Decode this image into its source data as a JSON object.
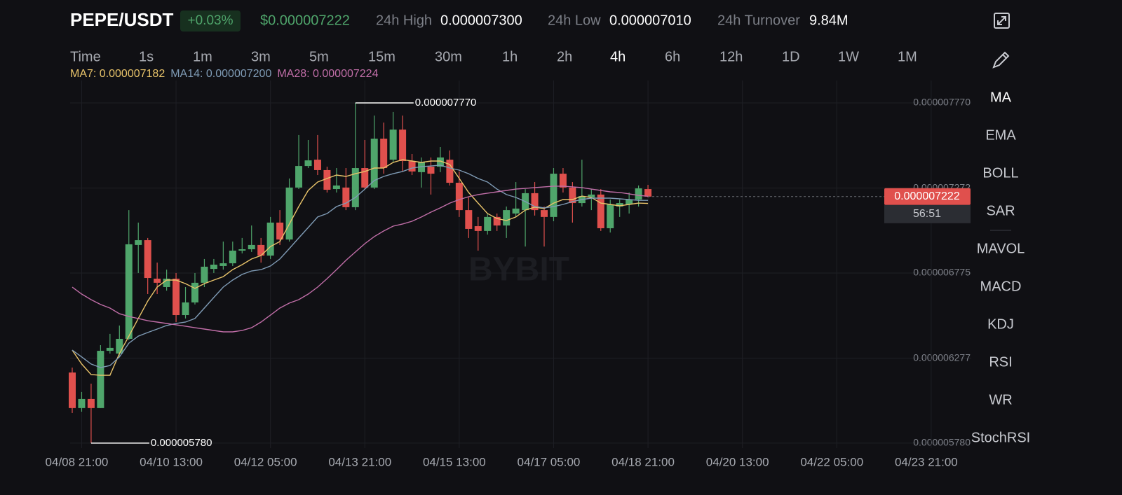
{
  "header": {
    "pair": "PEPE/USDT",
    "change": "+0.03%",
    "price": "$0.000007222",
    "high_label": "24h High",
    "high": "0.000007300",
    "low_label": "24h Low",
    "low": "0.000007010",
    "turnover_label": "24h Turnover",
    "turnover": "9.84M"
  },
  "timeframes": {
    "items": [
      "Time",
      "1s",
      "1m",
      "3m",
      "5m",
      "15m",
      "30m",
      "1h",
      "2h",
      "4h",
      "6h",
      "12h",
      "1D",
      "1W",
      "1M"
    ],
    "active": "4h"
  },
  "indicators": {
    "items": [
      "MA",
      "EMA",
      "BOLL",
      "SAR",
      "MAVOL",
      "MACD",
      "KDJ",
      "RSI",
      "WR",
      "StochRSI"
    ],
    "active": "MA"
  },
  "chart_data": {
    "type": "candlestick",
    "watermark": "BYBIT",
    "up_color": "#4fa56b",
    "down_color": "#e0504d",
    "x": [
      "04/08 17:00",
      "04/08 21:00",
      "04/09 01:00",
      "04/09 05:00",
      "04/09 09:00",
      "04/09 13:00",
      "04/09 17:00",
      "04/09 21:00",
      "04/10 01:00",
      "04/10 05:00",
      "04/10 09:00",
      "04/10 13:00",
      "04/10 17:00",
      "04/10 21:00",
      "04/11 01:00",
      "04/11 05:00",
      "04/11 09:00",
      "04/11 13:00",
      "04/11 17:00",
      "04/11 21:00",
      "04/12 01:00",
      "04/12 05:00",
      "04/12 09:00",
      "04/12 13:00",
      "04/12 17:00",
      "04/12 21:00",
      "04/13 01:00",
      "04/13 05:00",
      "04/13 09:00",
      "04/13 13:00",
      "04/13 17:00",
      "04/13 21:00",
      "04/14 01:00",
      "04/14 05:00",
      "04/14 09:00",
      "04/14 13:00",
      "04/14 17:00",
      "04/14 21:00",
      "04/15 01:00",
      "04/15 05:00",
      "04/15 09:00",
      "04/15 13:00",
      "04/15 17:00",
      "04/15 21:00",
      "04/16 01:00",
      "04/16 05:00",
      "04/16 09:00",
      "04/16 13:00",
      "04/16 17:00",
      "04/16 21:00",
      "04/17 01:00",
      "04/17 05:00",
      "04/17 09:00",
      "04/17 13:00",
      "04/17 17:00",
      "04/17 21:00",
      "04/18 01:00",
      "04/18 05:00",
      "04/18 09:00",
      "04/18 13:00",
      "04/18 17:00",
      "04/18 21:00"
    ],
    "open": [
      6.193e-06,
      5.985e-06,
      6.038e-06,
      5.985e-06,
      6.32e-06,
      6.304e-06,
      6.39e-06,
      6.939e-06,
      6.967e-06,
      6.742e-06,
      6.693e-06,
      6.742e-06,
      6.529e-06,
      6.603e-06,
      6.718e-06,
      6.799e-06,
      6.816e-06,
      6.832e-06,
      6.906e-06,
      6.914e-06,
      6.939e-06,
      6.877e-06,
      7.07e-06,
      6.971e-06,
      7.275e-06,
      7.401e-06,
      7.438e-06,
      7.377e-06,
      7.266e-06,
      7.275e-06,
      7.16e-06,
      7.389e-06,
      7.275e-06,
      7.561e-06,
      7.438e-06,
      7.614e-06,
      7.43e-06,
      7.365e-06,
      7.397e-06,
      7.397e-06,
      7.438e-06,
      7.303e-06,
      7.143e-06,
      7.049e-06,
      7.021e-06,
      7.103e-06,
      7.053e-06,
      7.123e-06,
      7.143e-06,
      7.242e-06,
      7.143e-06,
      7.103e-06,
      7.356e-06,
      7.275e-06,
      7.184e-06,
      7.217e-06,
      7.234e-06,
      7.037e-06,
      7.164e-06,
      7.176e-06,
      7.205e-06,
      7.266e-06
    ],
    "high": [
      6.222e-06,
      6.079e-06,
      6.128e-06,
      6.353e-06,
      6.419e-06,
      6.468e-06,
      7.143e-06,
      7.07e-06,
      6.98e-06,
      6.836e-06,
      6.795e-06,
      6.775e-06,
      6.693e-06,
      6.775e-06,
      6.857e-06,
      6.857e-06,
      6.959e-06,
      6.959e-06,
      6.98e-06,
      7.053e-06,
      6.98e-06,
      7.103e-06,
      7.143e-06,
      7.328e-06,
      7.582e-06,
      7.553e-06,
      7.582e-06,
      7.397e-06,
      7.389e-06,
      7.389e-06,
      7.77e-06,
      7.553e-06,
      7.696e-06,
      7.655e-06,
      7.717e-06,
      7.696e-06,
      7.471e-06,
      7.451e-06,
      7.451e-06,
      7.512e-06,
      7.492e-06,
      7.369e-06,
      7.217e-06,
      7.103e-06,
      7.123e-06,
      7.123e-06,
      7.164e-06,
      7.307e-06,
      7.266e-06,
      7.307e-06,
      7.164e-06,
      7.389e-06,
      7.389e-06,
      7.307e-06,
      7.438e-06,
      7.266e-06,
      7.266e-06,
      7.205e-06,
      7.205e-06,
      7.246e-06,
      7.287e-06,
      7.291e-06
    ],
    "low": [
      5.956e-06,
      5.964e-06,
      5.78e-06,
      5.985e-06,
      6.304e-06,
      6.284e-06,
      6.382e-06,
      6.775e-06,
      6.652e-06,
      6.652e-06,
      6.672e-06,
      6.488e-06,
      6.509e-06,
      6.591e-06,
      6.693e-06,
      6.775e-06,
      6.795e-06,
      6.816e-06,
      6.89e-06,
      6.898e-06,
      6.836e-06,
      6.857e-06,
      6.939e-06,
      6.959e-06,
      7.266e-06,
      7.389e-06,
      7.348e-06,
      7.246e-06,
      7.246e-06,
      7.143e-06,
      7.143e-06,
      7.266e-06,
      7.266e-06,
      7.356e-06,
      7.422e-06,
      7.369e-06,
      7.348e-06,
      7.275e-06,
      7.234e-06,
      7.365e-06,
      7.287e-06,
      7.103e-06,
      6.98e-06,
      6.906e-06,
      7e-06,
      7.021e-06,
      6.98e-06,
      7.103e-06,
      6.93e-06,
      7.111e-06,
      6.93e-06,
      7.078e-06,
      7.246e-06,
      7.07e-06,
      7.164e-06,
      7.143e-06,
      7.021e-06,
      7.012e-06,
      7.103e-06,
      7.123e-06,
      7.164e-06,
      7.217e-06
    ],
    "close": [
      5.985e-06,
      6.038e-06,
      5.985e-06,
      6.32e-06,
      6.337e-06,
      6.39e-06,
      6.943e-06,
      6.967e-06,
      6.746e-06,
      6.718e-06,
      6.742e-06,
      6.529e-06,
      6.603e-06,
      6.718e-06,
      6.812e-06,
      6.824e-06,
      6.832e-06,
      6.906e-06,
      6.914e-06,
      6.939e-06,
      6.877e-06,
      7.07e-06,
      6.971e-06,
      7.275e-06,
      7.401e-06,
      7.434e-06,
      7.377e-06,
      7.262e-06,
      7.287e-06,
      7.16e-06,
      7.389e-06,
      7.275e-06,
      7.561e-06,
      7.389e-06,
      7.614e-06,
      7.43e-06,
      7.369e-06,
      7.422e-06,
      7.356e-06,
      7.451e-06,
      7.303e-06,
      7.143e-06,
      7.033e-06,
      7.021e-06,
      7.103e-06,
      7.053e-06,
      7.143e-06,
      7.152e-06,
      7.242e-06,
      7.143e-06,
      7.103e-06,
      7.356e-06,
      7.275e-06,
      7.184e-06,
      7.225e-06,
      7.234e-06,
      7.037e-06,
      7.176e-06,
      7.184e-06,
      7.205e-06,
      7.27e-06,
      7.222e-06
    ],
    "series": [
      {
        "name": "MA7: 0.000007182",
        "color": "#e8c36a",
        "values": [
          6.324e-06,
          6.243e-06,
          6.181e-06,
          6.177e-06,
          6.177e-06,
          6.304e-06,
          6.406e-06,
          6.509e-06,
          6.611e-06,
          6.693e-06,
          6.734e-06,
          6.734e-06,
          6.713e-06,
          6.685e-06,
          6.713e-06,
          6.734e-06,
          6.754e-06,
          6.795e-06,
          6.824e-06,
          6.857e-06,
          6.877e-06,
          6.93e-06,
          6.959e-06,
          7.062e-06,
          7.164e-06,
          7.258e-06,
          7.307e-06,
          7.328e-06,
          7.348e-06,
          7.34e-06,
          7.356e-06,
          7.369e-06,
          7.389e-06,
          7.389e-06,
          7.422e-06,
          7.438e-06,
          7.43e-06,
          7.422e-06,
          7.43e-06,
          7.43e-06,
          7.41e-06,
          7.328e-06,
          7.246e-06,
          7.184e-06,
          7.123e-06,
          7.094e-06,
          7.082e-06,
          7.103e-06,
          7.143e-06,
          7.16e-06,
          7.152e-06,
          7.184e-06,
          7.205e-06,
          7.205e-06,
          7.225e-06,
          7.217e-06,
          7.184e-06,
          7.176e-06,
          7.168e-06,
          7.176e-06,
          7.184e-06,
          7.182e-06
        ]
      },
      {
        "name": "MA14: 0.000007200",
        "color": "#7f9bb5",
        "values": [
          6.324e-06,
          6.284e-06,
          6.243e-06,
          6.222e-06,
          6.234e-06,
          6.284e-06,
          6.365e-06,
          6.406e-06,
          6.427e-06,
          6.447e-06,
          6.468e-06,
          6.48e-06,
          6.488e-06,
          6.509e-06,
          6.57e-06,
          6.632e-06,
          6.693e-06,
          6.734e-06,
          6.767e-06,
          6.787e-06,
          6.795e-06,
          6.816e-06,
          6.857e-06,
          6.918e-06,
          6.98e-06,
          7.041e-06,
          7.103e-06,
          7.123e-06,
          7.164e-06,
          7.184e-06,
          7.217e-06,
          7.266e-06,
          7.316e-06,
          7.34e-06,
          7.356e-06,
          7.369e-06,
          7.389e-06,
          7.397e-06,
          7.401e-06,
          7.406e-06,
          7.389e-06,
          7.377e-06,
          7.356e-06,
          7.328e-06,
          7.307e-06,
          7.266e-06,
          7.234e-06,
          7.217e-06,
          7.193e-06,
          7.164e-06,
          7.156e-06,
          7.164e-06,
          7.176e-06,
          7.193e-06,
          7.205e-06,
          7.213e-06,
          7.213e-06,
          7.213e-06,
          7.209e-06,
          7.205e-06,
          7.2e-06,
          7.2e-06
        ]
      },
      {
        "name": "MA28: 0.000007224",
        "color": "#c16ea8",
        "values": [
          6.693e-06,
          6.652e-06,
          6.619e-06,
          6.591e-06,
          6.57e-06,
          6.537e-06,
          6.521e-06,
          6.509e-06,
          6.496e-06,
          6.488e-06,
          6.48e-06,
          6.472e-06,
          6.464e-06,
          6.455e-06,
          6.447e-06,
          6.439e-06,
          6.431e-06,
          6.431e-06,
          6.439e-06,
          6.455e-06,
          6.488e-06,
          6.529e-06,
          6.57e-06,
          6.599e-06,
          6.619e-06,
          6.652e-06,
          6.693e-06,
          6.742e-06,
          6.795e-06,
          6.849e-06,
          6.898e-06,
          6.947e-06,
          6.988e-06,
          7.021e-06,
          7.049e-06,
          7.062e-06,
          7.078e-06,
          7.103e-06,
          7.131e-06,
          7.156e-06,
          7.184e-06,
          7.205e-06,
          7.221e-06,
          7.234e-06,
          7.242e-06,
          7.25e-06,
          7.258e-06,
          7.266e-06,
          7.27e-06,
          7.275e-06,
          7.279e-06,
          7.283e-06,
          7.283e-06,
          7.279e-06,
          7.275e-06,
          7.266e-06,
          7.258e-06,
          7.25e-06,
          7.246e-06,
          7.238e-06,
          7.229e-06,
          7.224e-06
        ]
      }
    ],
    "ylim": [
      5.751e-06,
      7.901e-06
    ],
    "yticks": [
      {
        "value": 7.77e-06,
        "label": "0.000007770"
      },
      {
        "value": 7.272e-06,
        "label": "0.000007272"
      },
      {
        "value": 6.775e-06,
        "label": "0.000006775"
      },
      {
        "value": 6.277e-06,
        "label": "0.000006277"
      },
      {
        "value": 5.78e-06,
        "label": "0.000005780"
      }
    ],
    "xticks": [
      "04/08 21:00",
      "04/10 13:00",
      "04/12 05:00",
      "04/13 21:00",
      "04/15 13:00",
      "04/17 05:00",
      "04/18 21:00",
      "04/20 13:00",
      "04/22 05:00",
      "04/23 21:00"
    ],
    "grid": true,
    "extremes": [
      {
        "x": "04/13 17:00",
        "value": 7.77e-06,
        "label": "0.000007770"
      },
      {
        "x": "04/09 01:00",
        "value": 5.78e-06,
        "label": "0.000005780"
      }
    ],
    "last": {
      "value": 7.222e-06,
      "label": "0.000007222"
    },
    "countdown": "56:51"
  }
}
